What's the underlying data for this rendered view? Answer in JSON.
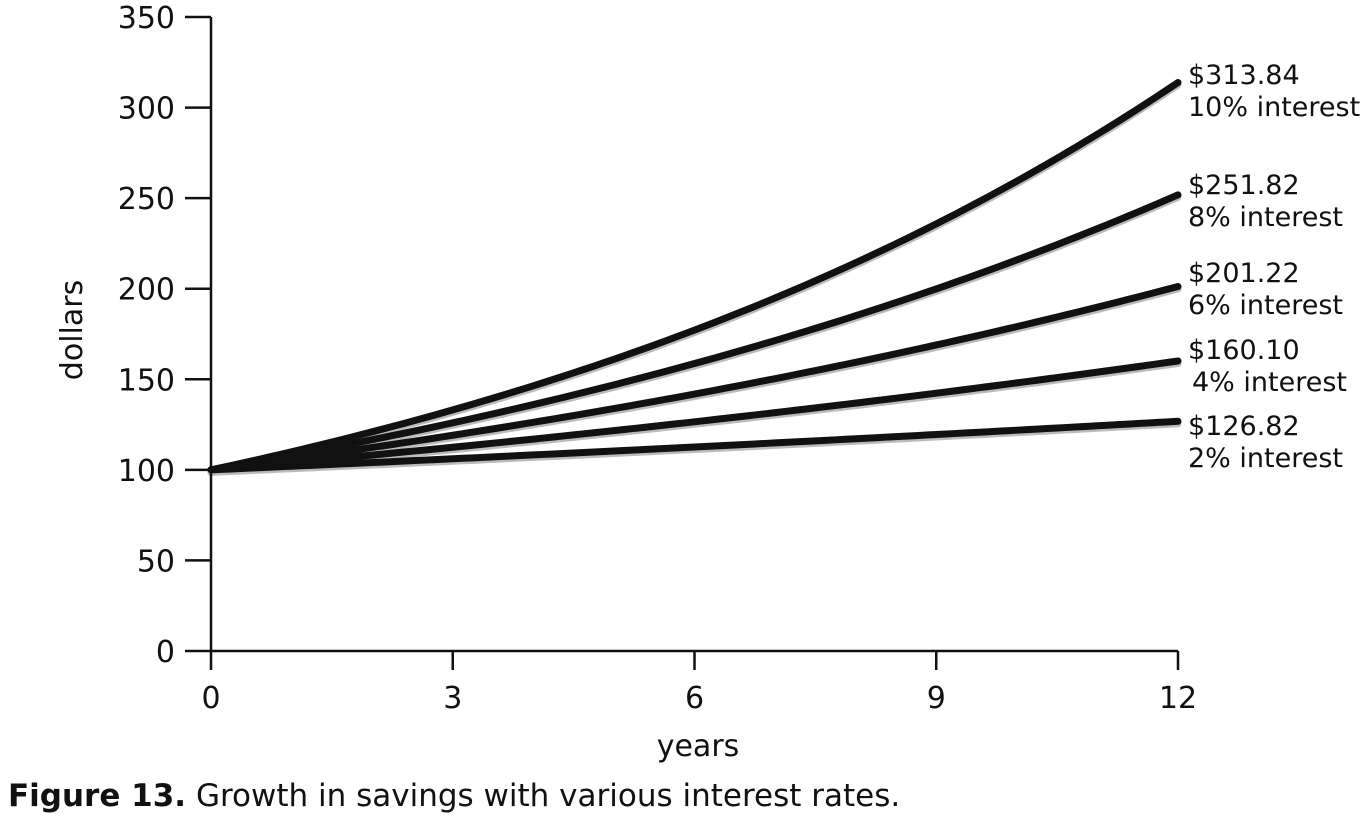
{
  "chart_data": {
    "type": "line",
    "xlabel": "years",
    "ylabel": "dollars",
    "xlim": [
      0,
      12
    ],
    "ylim": [
      0,
      350
    ],
    "x_ticks": [
      0,
      3,
      6,
      9,
      12
    ],
    "y_ticks": [
      0,
      50,
      100,
      150,
      200,
      250,
      300,
      350
    ],
    "grid": false,
    "line_color": "#111111",
    "shadow_color": "#bbbbbb",
    "x": [
      0,
      1,
      2,
      3,
      4,
      5,
      6,
      7,
      8,
      9,
      10,
      11,
      12
    ],
    "series": [
      {
        "name": "10% interest",
        "end_label": "$313.84",
        "rate": 0.1,
        "values": [
          100,
          110,
          121,
          133.1,
          146.41,
          161.05,
          177.16,
          194.87,
          214.36,
          235.79,
          259.37,
          285.31,
          313.84
        ]
      },
      {
        "name": "8% interest",
        "end_label": "$251.82",
        "rate": 0.08,
        "values": [
          100,
          108,
          116.64,
          125.97,
          136.05,
          146.93,
          158.69,
          171.38,
          185.09,
          199.9,
          215.89,
          233.16,
          251.82
        ]
      },
      {
        "name": "6% interest",
        "end_label": "$201.22",
        "rate": 0.06,
        "values": [
          100,
          106,
          112.36,
          119.1,
          126.25,
          133.82,
          141.85,
          150.36,
          159.38,
          168.95,
          179.08,
          189.83,
          201.22
        ]
      },
      {
        "name": "4% interest",
        "end_label": "$160.10",
        "rate": 0.04,
        "values": [
          100,
          104,
          108.16,
          112.49,
          116.99,
          121.67,
          126.53,
          131.59,
          136.86,
          142.33,
          148.02,
          153.95,
          160.1
        ]
      },
      {
        "name": "2% interest",
        "end_label": "$126.82",
        "rate": 0.02,
        "values": [
          100,
          102,
          104.04,
          106.12,
          108.24,
          110.41,
          112.62,
          114.87,
          117.17,
          119.51,
          121.9,
          124.34,
          126.82
        ]
      }
    ]
  },
  "caption": {
    "figure_number": "Figure 13.",
    "text": " Growth in savings with various interest rates."
  }
}
